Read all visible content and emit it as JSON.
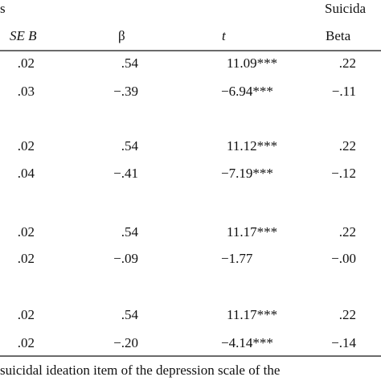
{
  "header": {
    "group_left": "s",
    "group_right": "Suicida",
    "columns": [
      "SE B",
      "β",
      "t",
      "Beta"
    ]
  },
  "table": {
    "rows": [
      [
        ".02",
        ".54",
        "11.09***",
        ".22"
      ],
      [
        ".03",
        "−.39",
        "−6.94***",
        "−.11"
      ],
      [
        ".02",
        ".54",
        "11.12***",
        ".22"
      ],
      [
        ".04",
        "−.41",
        "−7.19***",
        "−.12"
      ],
      [
        ".02",
        ".54",
        "11.17***",
        ".22"
      ],
      [
        ".02",
        "−.09",
        "−1.77",
        "−.00"
      ],
      [
        ".02",
        ".54",
        "11.17***",
        ".22"
      ],
      [
        ".02",
        "−.20",
        "−4.14***",
        "−.14"
      ]
    ]
  },
  "footnote": "suicidal ideation item of the depression scale of the"
}
